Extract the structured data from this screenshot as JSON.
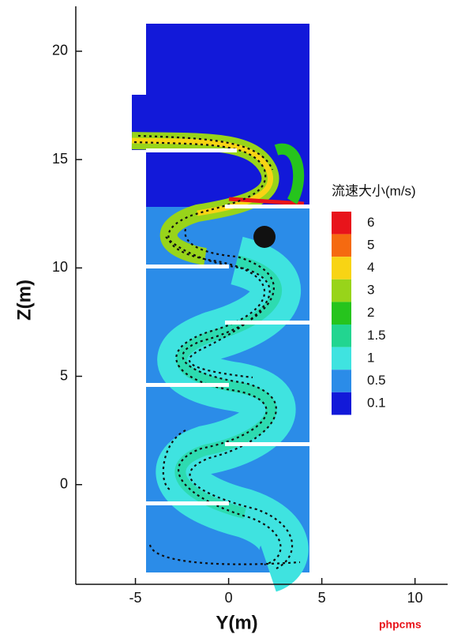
{
  "chart_data": {
    "type": "contour",
    "x_label": "Y(m)",
    "y_label": "Z(m)",
    "xlim": [
      -8.2,
      11.75
    ],
    "xticks": [
      -5,
      0,
      5,
      10
    ],
    "ylim": [
      -4.6,
      22.0
    ],
    "yticks": [
      0,
      5,
      10,
      15,
      20
    ],
    "legend": {
      "title": "流速大小(m/s)",
      "levels": [
        6,
        5,
        4,
        3,
        2,
        1.5,
        1,
        0.5,
        0.1
      ],
      "colors": [
        "#e8141b",
        "#f56a10",
        "#f8d414",
        "#98d41a",
        "#26c41d",
        "#22d590",
        "#3fe3e0",
        "#2b8ce8",
        "#1219d9"
      ]
    },
    "watermark": "phpcms"
  }
}
